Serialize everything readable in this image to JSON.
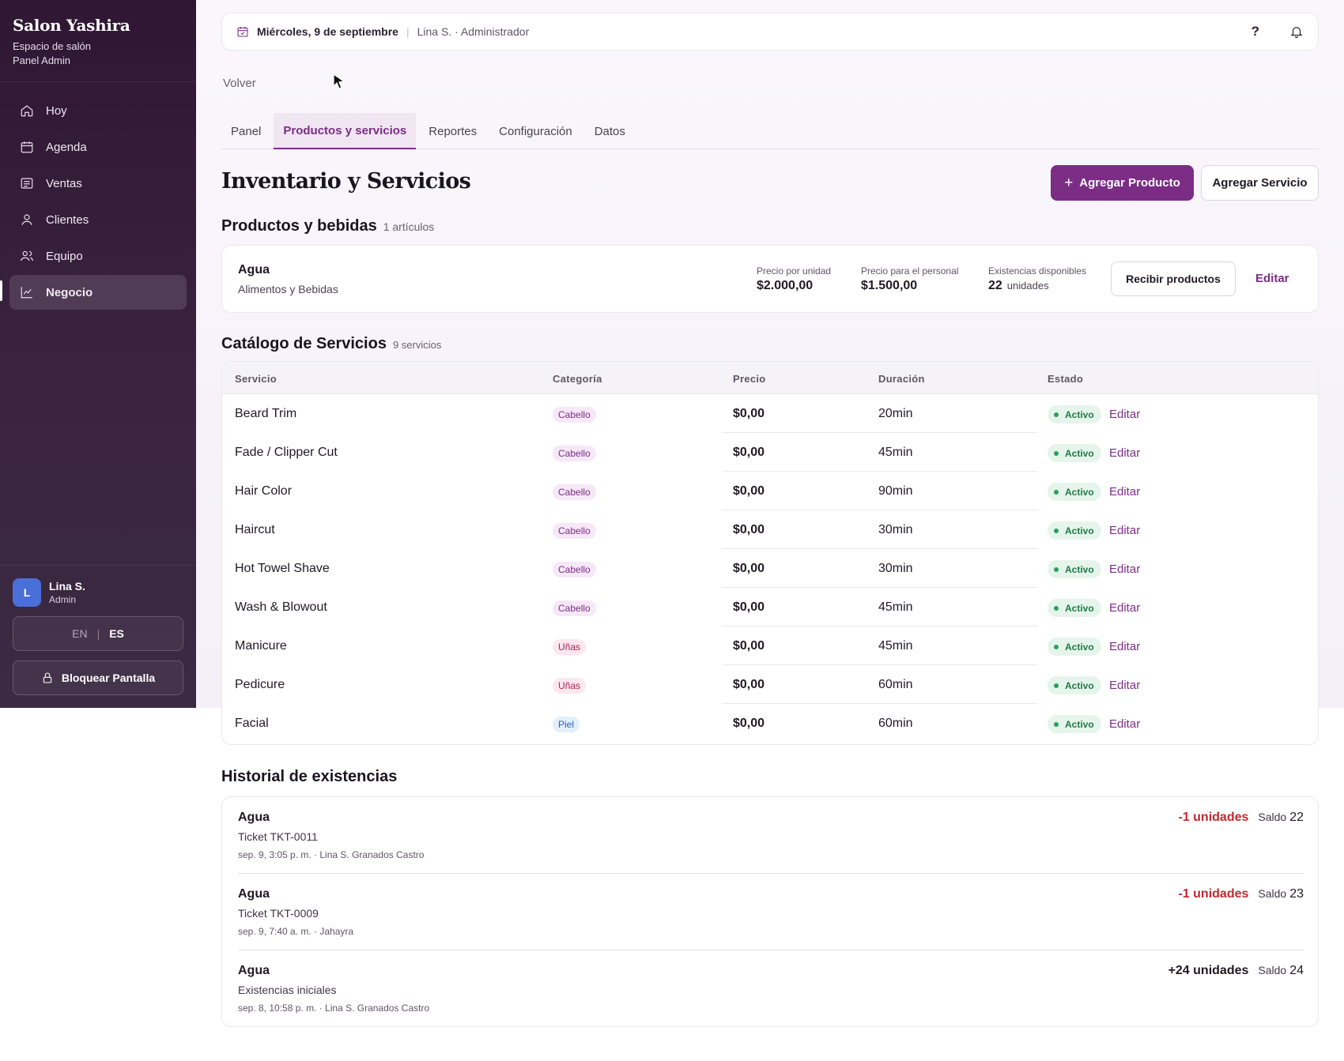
{
  "sidebar": {
    "brand": "Salon Yashira",
    "subtitle": "Espacio de salón",
    "panel": "Panel Admin",
    "items": [
      {
        "label": "Hoy",
        "icon": "home-icon"
      },
      {
        "label": "Agenda",
        "icon": "calendar-icon"
      },
      {
        "label": "Ventas",
        "icon": "receipt-icon"
      },
      {
        "label": "Clientes",
        "icon": "user-icon"
      },
      {
        "label": "Equipo",
        "icon": "users-icon"
      },
      {
        "label": "Negocio",
        "icon": "chart-line-icon",
        "active": true
      }
    ],
    "user": {
      "initial": "L",
      "name": "Lina S.",
      "role": "Admin"
    },
    "lang": {
      "en": "EN",
      "sep": "|",
      "es": "ES"
    },
    "lock_label": "Bloquear Pantalla"
  },
  "topbar": {
    "date": "Miércoles, 9 de septiembre",
    "sep": "|",
    "user": "Lina S. · Administrador",
    "help": "?"
  },
  "back_label": "Volver",
  "tabs": [
    {
      "label": "Panel"
    },
    {
      "label": "Productos y servicios",
      "active": true
    },
    {
      "label": "Reportes"
    },
    {
      "label": "Configuración"
    },
    {
      "label": "Datos"
    }
  ],
  "page": {
    "title": "Inventario y Servicios",
    "add_product": "Agregar Producto",
    "add_service": "Agregar Servicio"
  },
  "products": {
    "title": "Productos y bebidas",
    "count": "1 artículos",
    "item": {
      "name": "Agua",
      "category": "Alimentos y Bebidas",
      "unit_price_label": "Precio por unidad",
      "unit_price": "$2.000,00",
      "staff_price_label": "Precio para el personal",
      "staff_price": "$1.500,00",
      "stock_label": "Existencias disponibles",
      "stock": "22",
      "stock_unit": "unidades",
      "receive_label": "Recibir productos",
      "edit_label": "Editar"
    }
  },
  "services": {
    "title": "Catálogo de Servicios",
    "count": "9 servicios",
    "columns": [
      "Servicio",
      "Categoría",
      "Precio",
      "Duración",
      "Estado"
    ],
    "status_label": "Activo",
    "edit_label": "Editar",
    "rows": [
      {
        "name": "Beard Trim",
        "category": "Cabello",
        "kind": "hair",
        "price": "$0,00",
        "duration": "20min"
      },
      {
        "name": "Fade / Clipper Cut",
        "category": "Cabello",
        "kind": "hair",
        "price": "$0,00",
        "duration": "45min"
      },
      {
        "name": "Hair Color",
        "category": "Cabello",
        "kind": "hair",
        "price": "$0,00",
        "duration": "90min"
      },
      {
        "name": "Haircut",
        "category": "Cabello",
        "kind": "hair",
        "price": "$0,00",
        "duration": "30min"
      },
      {
        "name": "Hot Towel Shave",
        "category": "Cabello",
        "kind": "hair",
        "price": "$0,00",
        "duration": "30min"
      },
      {
        "name": "Wash & Blowout",
        "category": "Cabello",
        "kind": "hair",
        "price": "$0,00",
        "duration": "45min"
      },
      {
        "name": "Manicure",
        "category": "Uñas",
        "kind": "nail",
        "price": "$0,00",
        "duration": "45min"
      },
      {
        "name": "Pedicure",
        "category": "Uñas",
        "kind": "nail",
        "price": "$0,00",
        "duration": "60min"
      },
      {
        "name": "Facial",
        "category": "Piel",
        "kind": "skin",
        "price": "$0,00",
        "duration": "60min"
      }
    ]
  },
  "history": {
    "title": "Historial de existencias",
    "balance_label": "Saldo",
    "rows": [
      {
        "name": "Agua",
        "ref": "Ticket TKT-0011",
        "meta": "sep. 9, 3:05 p. m. · Lina S. Granados Castro",
        "qty": "-1 unidades",
        "sign": "neg",
        "balance": "22"
      },
      {
        "name": "Agua",
        "ref": "Ticket TKT-0009",
        "meta": "sep. 9, 7:40 a. m. · Jahayra",
        "qty": "-1 unidades",
        "sign": "neg",
        "balance": "23"
      },
      {
        "name": "Agua",
        "ref": "Existencias iniciales",
        "meta": "sep. 8, 10:58 p. m. · Lina S. Granados Castro",
        "qty": "+24 unidades",
        "sign": "pos",
        "balance": "24"
      }
    ]
  },
  "colors": {
    "accent": "#7b2d86",
    "sidebar": "#2f1733",
    "active_green": "#1f7a45",
    "negative": "#c2282e"
  }
}
